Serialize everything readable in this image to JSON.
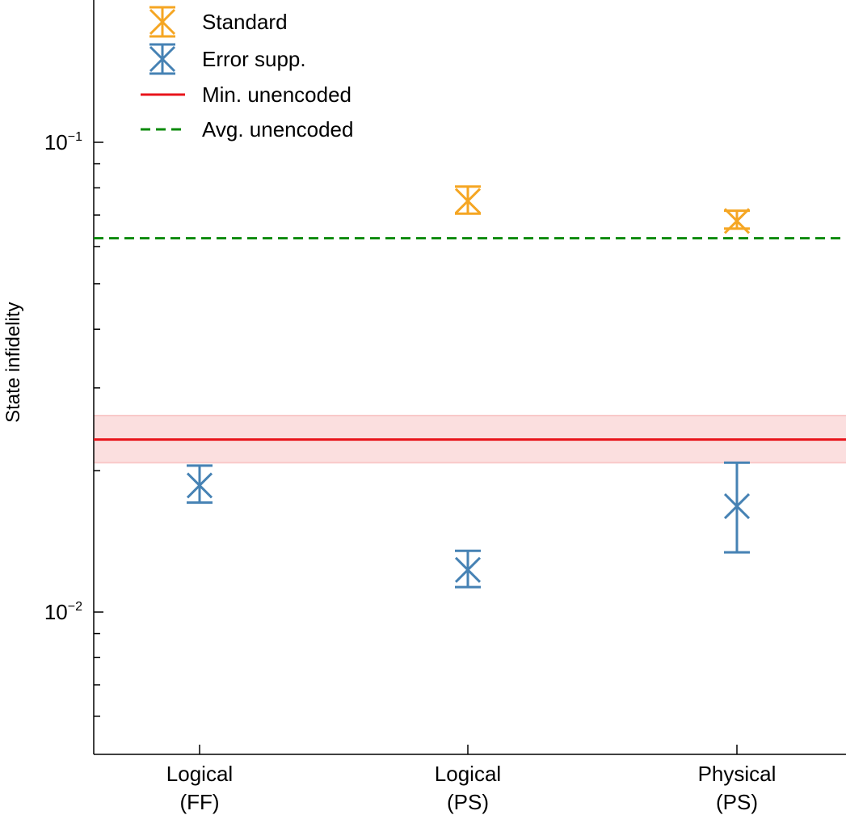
{
  "chart_data": {
    "type": "scatter",
    "title": "",
    "xlabel": "",
    "ylabel": "State infidelity",
    "yscale": "log",
    "ylim": [
      0.0046,
      0.185
    ],
    "grid": false,
    "legend_position": "top-left",
    "categories": [
      {
        "line1": "Logical",
        "line2": "(FF)"
      },
      {
        "line1": "Logical",
        "line2": "(PS)"
      },
      {
        "line1": "Physical",
        "line2": "(PS)"
      }
    ],
    "y_ticks": [
      {
        "value": 0.1,
        "base": "10",
        "exponent": "−1"
      },
      {
        "value": 0.01,
        "base": "10",
        "exponent": "−2"
      }
    ],
    "y_minor_ticks": [
      0.006,
      0.007,
      0.008,
      0.009,
      0.02,
      0.03,
      0.04,
      0.05,
      0.06,
      0.07,
      0.08,
      0.09
    ],
    "series": [
      {
        "name": "Standard",
        "color": "#F5A623",
        "marker": "x-errorbar",
        "points": [
          {
            "category": 1,
            "value": 0.075,
            "low": 0.0705,
            "high": 0.0805
          },
          {
            "category": 2,
            "value": 0.068,
            "low": 0.0655,
            "high": 0.0715
          }
        ]
      },
      {
        "name": "Error supp.",
        "color": "#4682B4",
        "marker": "x-errorbar",
        "points": [
          {
            "category": 0,
            "value": 0.0186,
            "low": 0.0171,
            "high": 0.0205
          },
          {
            "category": 1,
            "value": 0.0123,
            "low": 0.0113,
            "high": 0.0135
          },
          {
            "category": 2,
            "value": 0.0168,
            "low": 0.0134,
            "high": 0.0208
          }
        ]
      }
    ],
    "reference_lines": [
      {
        "name": "Min. unencoded",
        "value": 0.0233,
        "band": [
          0.0208,
          0.0262
        ],
        "color": "#E8141B",
        "band_color": "#F9C9C9",
        "style": "solid"
      },
      {
        "name": "Avg. unencoded",
        "value": 0.0625,
        "color": "#0A8A0A",
        "style": "dashed"
      }
    ]
  }
}
